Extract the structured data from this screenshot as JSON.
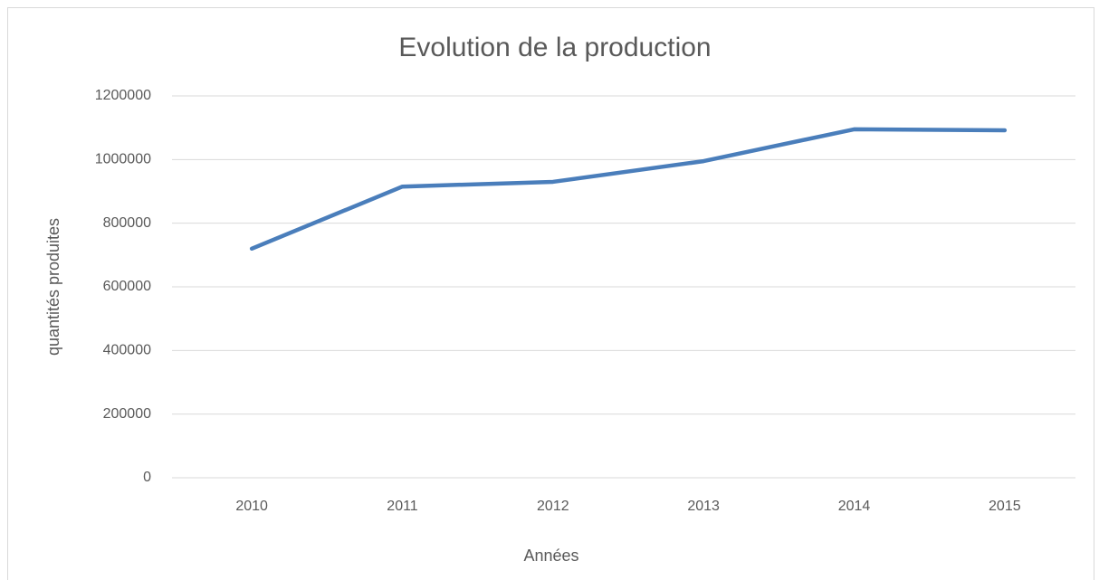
{
  "chart_data": {
    "type": "line",
    "title": "Evolution de la production",
    "x_label": "Années",
    "y_label": "quantités produites",
    "categories": [
      "2010",
      "2011",
      "2012",
      "2013",
      "2014",
      "2015"
    ],
    "series": [
      {
        "name": "quantités produites",
        "color": "#4a7ebb",
        "values": [
          720000,
          915000,
          930000,
          995000,
          1095000,
          1092000
        ]
      }
    ],
    "ylim": [
      0,
      1200000
    ],
    "yticks": [
      0,
      200000,
      400000,
      600000,
      800000,
      1000000,
      1200000
    ],
    "grid": true
  }
}
